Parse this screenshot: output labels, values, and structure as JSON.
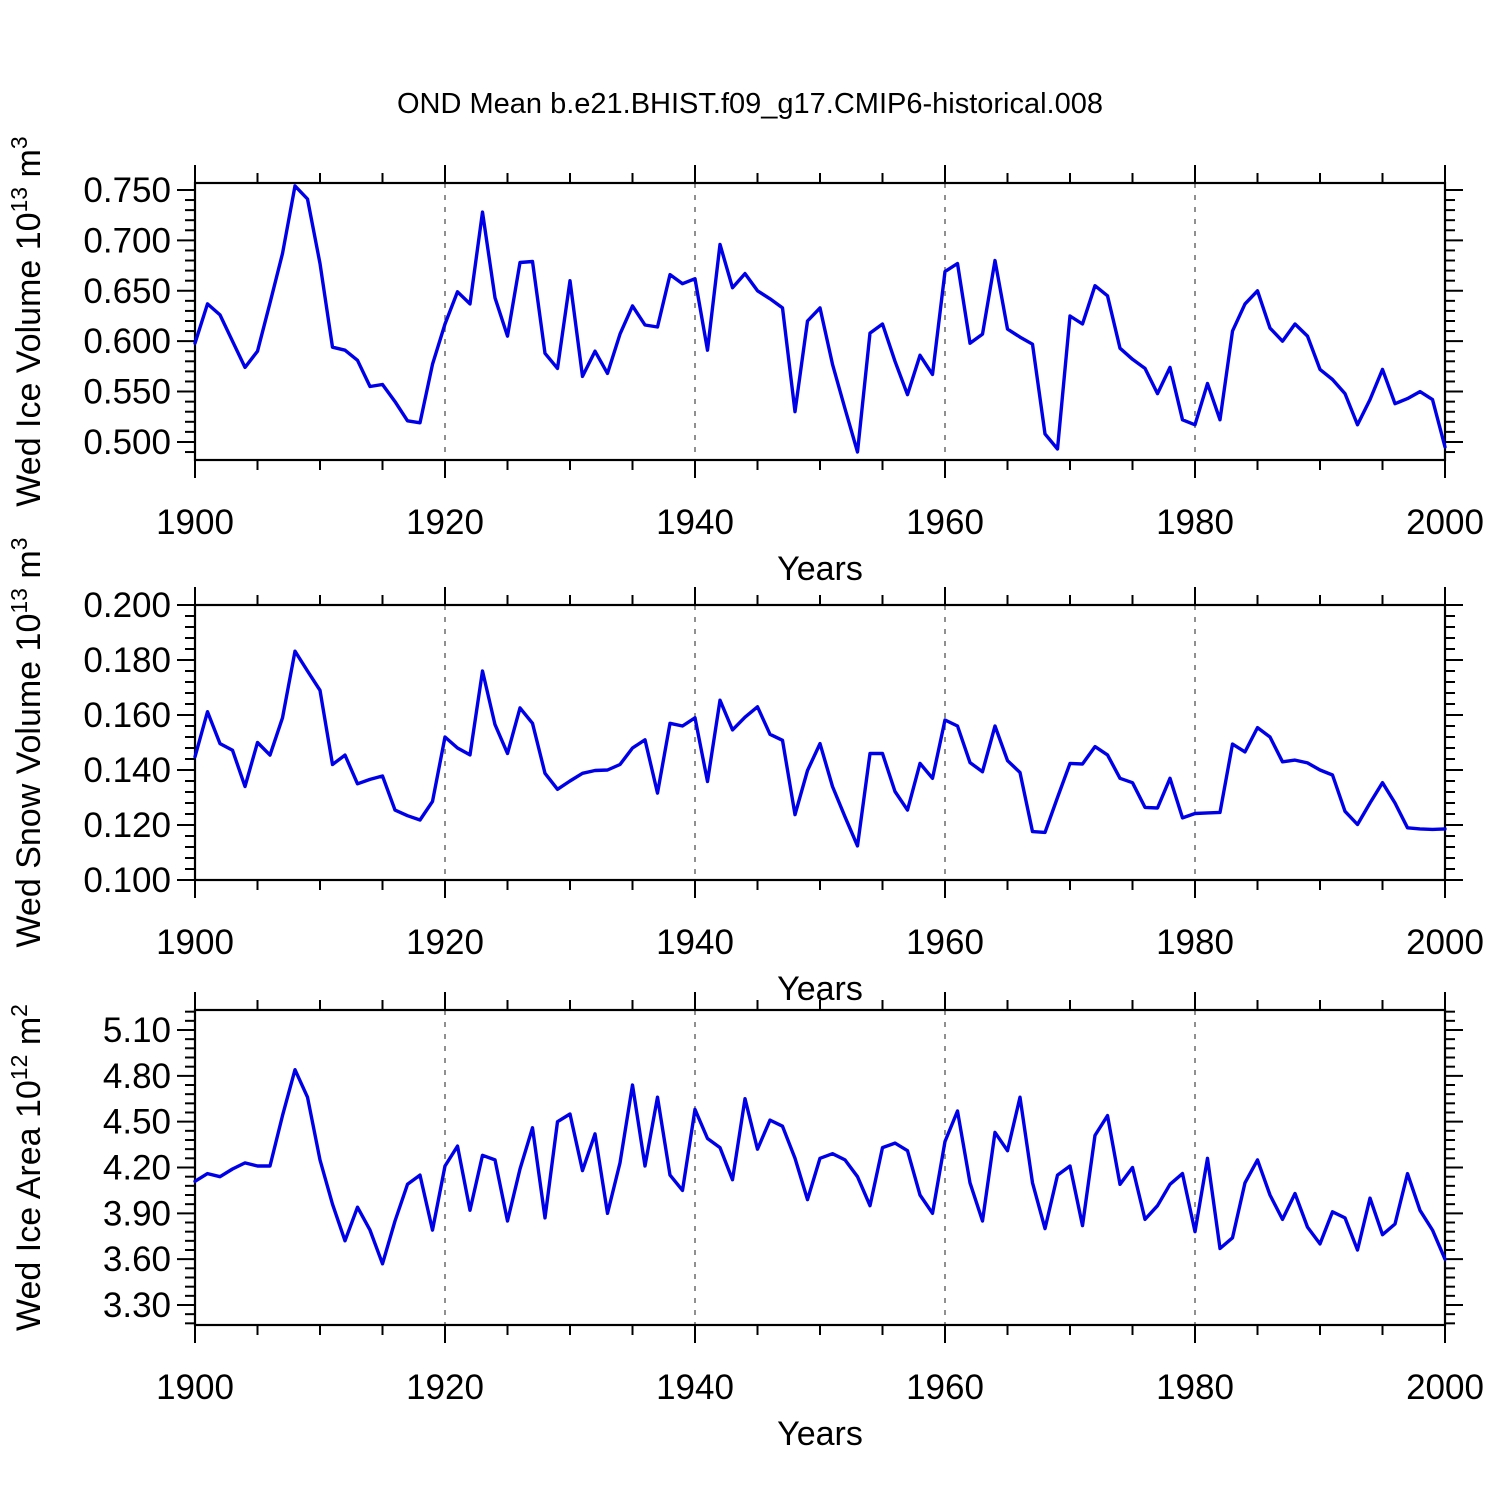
{
  "figure": {
    "title": "OND Mean b.e21.BHIST.f09_g17.CMIP6-historical.008",
    "line_color": "#0000e8",
    "frame_color": "#000000",
    "grid_color": "#757575",
    "background": "#ffffff"
  },
  "chart_data": [
    {
      "type": "line",
      "name": "wed-ice-volume",
      "ylabel_segments": [
        {
          "t": "Wed Ice Volume 10"
        },
        {
          "t": "13",
          "sup": true
        },
        {
          "t": " m"
        },
        {
          "t": "3",
          "sup": true
        }
      ],
      "xlabel": "Years",
      "x_start": 1900,
      "x_end": 2000,
      "x_step": 1,
      "xticks": [
        1900,
        1920,
        1940,
        1960,
        1980,
        2000
      ],
      "x_minor_step": 5,
      "grid_x": [
        1920,
        1940,
        1960,
        1980
      ],
      "ylim": [
        0.4821,
        0.7569
      ],
      "ytick_values": [
        0.5,
        0.55,
        0.6,
        0.65,
        0.7,
        0.75
      ],
      "ytick_labels": [
        "0.500",
        "0.550",
        "0.600",
        "0.650",
        "0.700",
        "0.750"
      ],
      "y_minor_step": 0.01,
      "values": [
        0.598,
        0.637,
        0.626,
        0.6,
        0.574,
        0.59,
        0.638,
        0.687,
        0.754,
        0.741,
        0.677,
        0.594,
        0.591,
        0.581,
        0.555,
        0.557,
        0.54,
        0.521,
        0.519,
        0.577,
        0.617,
        0.649,
        0.637,
        0.728,
        0.643,
        0.605,
        0.678,
        0.679,
        0.588,
        0.573,
        0.66,
        0.565,
        0.59,
        0.568,
        0.607,
        0.635,
        0.616,
        0.614,
        0.666,
        0.657,
        0.662,
        0.591,
        0.696,
        0.653,
        0.667,
        0.65,
        0.642,
        0.633,
        0.53,
        0.62,
        0.633,
        0.577,
        0.533,
        0.49,
        0.608,
        0.617,
        0.58,
        0.547,
        0.586,
        0.567,
        0.669,
        0.677,
        0.598,
        0.607,
        0.68,
        0.612,
        0.604,
        0.597,
        0.508,
        0.493,
        0.625,
        0.617,
        0.655,
        0.645,
        0.593,
        0.582,
        0.573,
        0.548,
        0.574,
        0.522,
        0.517,
        0.558,
        0.522,
        0.61,
        0.637,
        0.65,
        0.613,
        0.6,
        0.617,
        0.605,
        0.572,
        0.562,
        0.548,
        0.517,
        0.542,
        0.572,
        0.538,
        0.543,
        0.55,
        0.542,
        0.495
      ]
    },
    {
      "type": "line",
      "name": "wed-snow-volume",
      "ylabel_segments": [
        {
          "t": "Wed Snow Volume 10"
        },
        {
          "t": "13",
          "sup": true
        },
        {
          "t": " m"
        },
        {
          "t": "3",
          "sup": true
        }
      ],
      "xlabel": "Years",
      "x_start": 1900,
      "x_end": 2000,
      "x_step": 1,
      "xticks": [
        1900,
        1920,
        1940,
        1960,
        1980,
        2000
      ],
      "x_minor_step": 5,
      "grid_x": [
        1920,
        1940,
        1960,
        1980
      ],
      "ylim": [
        0.1,
        0.2
      ],
      "ytick_values": [
        0.1,
        0.12,
        0.14,
        0.16,
        0.18,
        0.2
      ],
      "ytick_labels": [
        "0.100",
        "0.120",
        "0.140",
        "0.160",
        "0.180",
        "0.200"
      ],
      "y_minor_step": 0.004,
      "values": [
        0.1448,
        0.1612,
        0.1496,
        0.1472,
        0.134,
        0.15,
        0.1454,
        0.159,
        0.1832,
        0.176,
        0.169,
        0.142,
        0.1454,
        0.135,
        0.1366,
        0.1378,
        0.1254,
        0.1234,
        0.1218,
        0.1286,
        0.152,
        0.148,
        0.1455,
        0.176,
        0.1565,
        0.146,
        0.1626,
        0.157,
        0.1388,
        0.133,
        0.136,
        0.1388,
        0.1398,
        0.14,
        0.142,
        0.148,
        0.151,
        0.1316,
        0.157,
        0.156,
        0.159,
        0.1358,
        0.1654,
        0.1546,
        0.1592,
        0.163,
        0.153,
        0.1508,
        0.1238,
        0.1398,
        0.1496,
        0.134,
        0.123,
        0.1124,
        0.146,
        0.146,
        0.1322,
        0.1254,
        0.1424,
        0.137,
        0.1582,
        0.156,
        0.1427,
        0.1394,
        0.156,
        0.1434,
        0.1391,
        0.1176,
        0.1173,
        0.13,
        0.1424,
        0.1422,
        0.1485,
        0.1455,
        0.137,
        0.1354,
        0.1264,
        0.1262,
        0.137,
        0.1226,
        0.1242,
        0.1244,
        0.1246,
        0.1494,
        0.1466,
        0.1554,
        0.152,
        0.143,
        0.1436,
        0.1426,
        0.14,
        0.1382,
        0.125,
        0.1202,
        0.128,
        0.1354,
        0.128,
        0.119,
        0.1186,
        0.1184,
        0.1186
      ]
    },
    {
      "type": "line",
      "name": "wed-ice-area",
      "ylabel_segments": [
        {
          "t": "Wed Ice Area 10"
        },
        {
          "t": "12",
          "sup": true
        },
        {
          "t": " m"
        },
        {
          "t": "2",
          "sup": true
        }
      ],
      "xlabel": "Years",
      "x_start": 1900,
      "x_end": 2000,
      "x_step": 1,
      "xticks": [
        1900,
        1920,
        1940,
        1960,
        1980,
        2000
      ],
      "x_minor_step": 5,
      "grid_x": [
        1920,
        1940,
        1960,
        1980
      ],
      "ylim": [
        3.1691,
        5.2309
      ],
      "ytick_values": [
        3.3,
        3.6,
        3.9,
        4.2,
        4.5,
        4.8,
        5.1
      ],
      "ytick_labels": [
        "3.30",
        "3.60",
        "3.90",
        "4.20",
        "4.50",
        "4.80",
        "5.10"
      ],
      "y_minor_step": 0.06,
      "values": [
        4.11,
        4.16,
        4.14,
        4.19,
        4.23,
        4.21,
        4.21,
        4.54,
        4.84,
        4.66,
        4.25,
        3.96,
        3.72,
        3.94,
        3.79,
        3.57,
        3.85,
        4.09,
        4.15,
        3.79,
        4.21,
        4.34,
        3.92,
        4.28,
        4.25,
        3.85,
        4.19,
        4.46,
        3.87,
        4.5,
        4.55,
        4.18,
        4.42,
        3.9,
        4.23,
        4.74,
        4.21,
        4.66,
        4.15,
        4.05,
        4.58,
        4.39,
        4.33,
        4.12,
        4.65,
        4.32,
        4.51,
        4.47,
        4.26,
        3.99,
        4.26,
        4.29,
        4.25,
        4.14,
        3.95,
        4.33,
        4.36,
        4.31,
        4.02,
        3.9,
        4.37,
        4.57,
        4.1,
        3.85,
        4.43,
        4.31,
        4.66,
        4.1,
        3.8,
        4.15,
        4.21,
        3.82,
        4.41,
        4.54,
        4.09,
        4.2,
        3.86,
        3.95,
        4.09,
        4.16,
        3.78,
        4.26,
        3.67,
        3.74,
        4.1,
        4.25,
        4.02,
        3.86,
        4.03,
        3.81,
        3.7,
        3.91,
        3.87,
        3.66,
        4.0,
        3.76,
        3.83,
        4.16,
        3.92,
        3.79,
        3.6
      ]
    }
  ]
}
